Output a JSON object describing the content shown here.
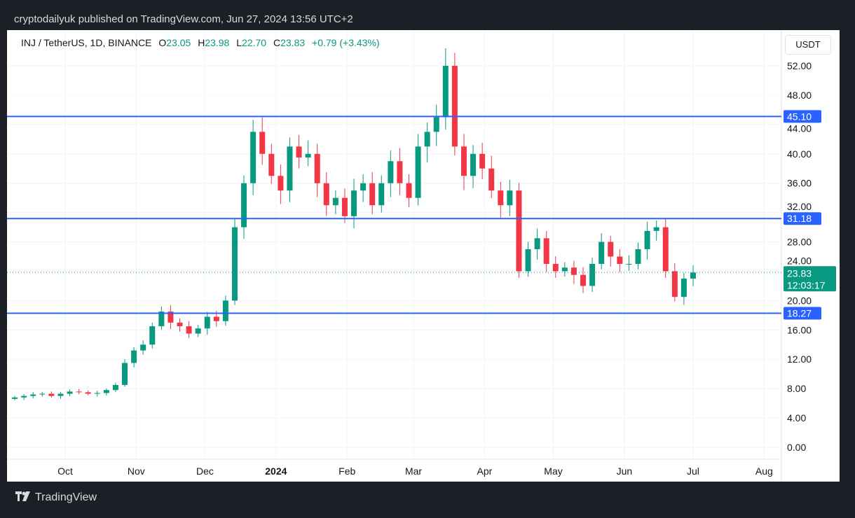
{
  "publisher": "cryptodailyuk published on TradingView.com, Jun 27, 2024 13:56 UTC+2",
  "footer": {
    "brand": "TradingView",
    "logo_text": "17"
  },
  "chart_data": {
    "type": "candlestick",
    "symbol": "INJ / TetherUS, 1D, BINANCE",
    "ohlc": {
      "o_label": "O",
      "o": "23.05",
      "h_label": "H",
      "h": "23.98",
      "l_label": "L",
      "l": "22.70",
      "c_label": "C",
      "c": "23.83",
      "change": "+0.79 (+3.43%)"
    },
    "currency": "USDT",
    "start_date": "2023-09-09",
    "step_days": 4,
    "closes": [
      6.8,
      7.0,
      7.2,
      7.3,
      7.0,
      7.3,
      7.6,
      7.5,
      7.3,
      7.4,
      7.8,
      8.5,
      11.5,
      13.2,
      14,
      16.5,
      18.5,
      17.0,
      16.5,
      15.5,
      16.2,
      17.8,
      17.2,
      20,
      30,
      36,
      43,
      40,
      37,
      35,
      41,
      39.5,
      40,
      36,
      33,
      34,
      31.5,
      35,
      36,
      33,
      36,
      39,
      36,
      34,
      41,
      43,
      45,
      52,
      41,
      37,
      40,
      38,
      35,
      33,
      35,
      24,
      27,
      28.5,
      25,
      24,
      24.5,
      23.5,
      22,
      25,
      28,
      26,
      25,
      25,
      27,
      29.5,
      30,
      24,
      20.5,
      23,
      23.83
    ],
    "y_ticks": [
      "0.00",
      "4.00",
      "8.00",
      "12.00",
      "16.00",
      "20.00",
      "24.00",
      "28.00",
      "32.00",
      "36.00",
      "40.00",
      "44.00",
      "48.00",
      "52.00"
    ],
    "x_ticks": [
      {
        "label": "Oct",
        "day": 22
      },
      {
        "label": "Nov",
        "day": 53
      },
      {
        "label": "Dec",
        "day": 83
      },
      {
        "label": "2024",
        "day": 114
      },
      {
        "label": "Feb",
        "day": 145
      },
      {
        "label": "Mar",
        "day": 174
      },
      {
        "label": "Apr",
        "day": 205
      },
      {
        "label": "May",
        "day": 235
      },
      {
        "label": "Jun",
        "day": 266
      },
      {
        "label": "Jul",
        "day": 296
      },
      {
        "label": "Aug",
        "day": 327
      }
    ],
    "levels": [
      {
        "value": 45.1,
        "label": "45.10"
      },
      {
        "value": 31.18,
        "label": "31.18"
      },
      {
        "value": 18.27,
        "label": "18.27"
      }
    ],
    "last_price": {
      "value": 23.83,
      "label": "23.83",
      "countdown": "12:03:17"
    },
    "colors": {
      "up": "#089981",
      "down": "#f23645",
      "level": "#2962ff"
    }
  }
}
